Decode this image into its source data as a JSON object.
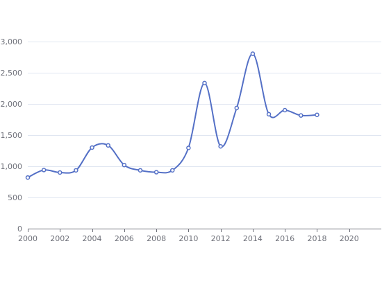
{
  "chart_data": {
    "type": "line",
    "title": "",
    "xlabel": "",
    "ylabel": "",
    "xlim": [
      2000,
      2022
    ],
    "ylim": [
      0,
      3000
    ],
    "x_ticks": [
      2000,
      2002,
      2004,
      2006,
      2008,
      2010,
      2012,
      2014,
      2016,
      2018,
      2020
    ],
    "y_ticks": [
      0,
      500,
      1000,
      1500,
      2000,
      2500,
      3000
    ],
    "y_tick_labels": [
      "0",
      "500",
      "1,000",
      "1,500",
      "2,000",
      "2,500",
      "3,000"
    ],
    "grid": "horizontal",
    "smooth": true,
    "colors": {
      "series": "#5470c6",
      "grid": "#e0e6f1",
      "axis": "#6e7079"
    },
    "series": [
      {
        "points": [
          {
            "x": 2000.0,
            "y": 820
          },
          {
            "x": 2001.0,
            "y": 940
          },
          {
            "x": 2002.0,
            "y": 900
          },
          {
            "x": 2003.0,
            "y": 935
          },
          {
            "x": 2004.0,
            "y": 1300
          },
          {
            "x": 2005.0,
            "y": 1335
          },
          {
            "x": 2006.0,
            "y": 1020
          },
          {
            "x": 2007.0,
            "y": 935
          },
          {
            "x": 2008.0,
            "y": 905
          },
          {
            "x": 2009.0,
            "y": 935
          },
          {
            "x": 2010.0,
            "y": 1295
          },
          {
            "x": 2011.0,
            "y": 2335
          },
          {
            "x": 2012.0,
            "y": 1320
          },
          {
            "x": 2013.0,
            "y": 1935
          },
          {
            "x": 2014.0,
            "y": 2805
          },
          {
            "x": 2015.0,
            "y": 1835
          },
          {
            "x": 2016.0,
            "y": 1900
          },
          {
            "x": 2017.0,
            "y": 1815
          },
          {
            "x": 2018.0,
            "y": 1825
          }
        ]
      }
    ]
  }
}
